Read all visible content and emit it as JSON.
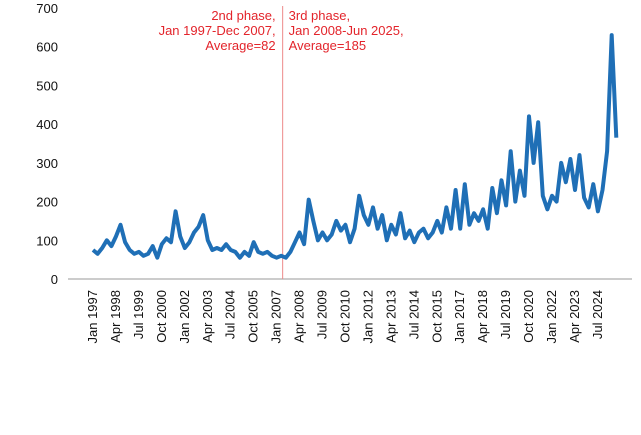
{
  "chart_data": {
    "type": "line",
    "categories": [
      "Jan 1997",
      null,
      null,
      null,
      null,
      "Apr 1998",
      null,
      null,
      null,
      null,
      "Jul 1999",
      null,
      null,
      null,
      null,
      "Oct 2000",
      null,
      null,
      null,
      null,
      "Jan 2002",
      null,
      null,
      null,
      null,
      "Apr 2003",
      null,
      null,
      null,
      null,
      "Jul 2004",
      null,
      null,
      null,
      null,
      "Oct 2005",
      null,
      null,
      null,
      null,
      "Jan 2007",
      null,
      null,
      null,
      null,
      "Apr 2008",
      null,
      null,
      null,
      null,
      "Jul 2009",
      null,
      null,
      null,
      null,
      "Oct 2010",
      null,
      null,
      null,
      null,
      "Jan 2012",
      null,
      null,
      null,
      null,
      "Apr 2013",
      null,
      null,
      null,
      null,
      "Jul 2014",
      null,
      null,
      null,
      null,
      "Oct 2015",
      null,
      null,
      null,
      null,
      "Jan 2017",
      null,
      null,
      null,
      null,
      "Apr 2018",
      null,
      null,
      null,
      null,
      "Jul 2019",
      null,
      null,
      null,
      null,
      "Oct 2020",
      null,
      null,
      null,
      null,
      "Jan 2022",
      null,
      null,
      null,
      null,
      "Apr 2023",
      null,
      null,
      null,
      null,
      "Jul 2024",
      null,
      null,
      null,
      null
    ],
    "series": [
      {
        "color": "#1f6fb6",
        "values": [
          75,
          65,
          80,
          100,
          85,
          110,
          140,
          95,
          75,
          65,
          70,
          60,
          65,
          85,
          55,
          90,
          105,
          95,
          175,
          110,
          80,
          95,
          120,
          135,
          165,
          100,
          75,
          80,
          75,
          90,
          75,
          70,
          55,
          70,
          60,
          95,
          70,
          65,
          70,
          60,
          55,
          60,
          55,
          70,
          95,
          120,
          90,
          205,
          150,
          100,
          120,
          100,
          115,
          150,
          125,
          140,
          95,
          130,
          215,
          165,
          140,
          185,
          130,
          165,
          100,
          140,
          115,
          170,
          105,
          125,
          95,
          120,
          130,
          105,
          120,
          150,
          120,
          185,
          130,
          230,
          130,
          245,
          140,
          170,
          150,
          180,
          130,
          235,
          170,
          255,
          190,
          330,
          200,
          280,
          215,
          420,
          300,
          405,
          215,
          180,
          215,
          200,
          300,
          250,
          310,
          230,
          320,
          210,
          185,
          245,
          175,
          230,
          330,
          630,
          365
        ]
      }
    ],
    "ylim": [
      0,
      700
    ],
    "yticks": [
      0,
      100,
      200,
      300,
      400,
      500,
      600,
      700
    ],
    "annotations": [
      {
        "lines": [
          "2nd phase,",
          "Jan 1997-Dec 2007,",
          "Average=82"
        ],
        "color": "#e3242b"
      },
      {
        "lines": [
          "3rd phase,",
          "Jan 2008-Jun 2025,",
          "Average=185"
        ],
        "color": "#e3242b"
      }
    ]
  }
}
